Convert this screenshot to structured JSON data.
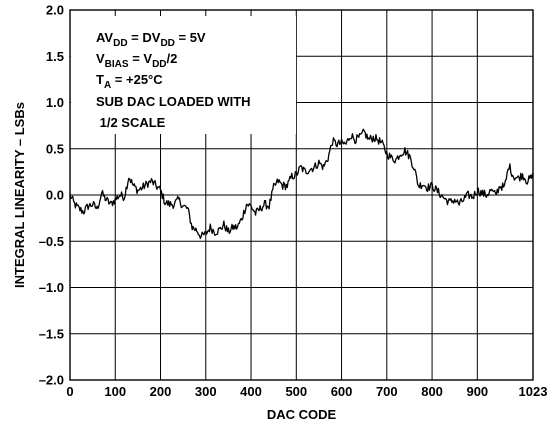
{
  "chart_data": {
    "type": "line",
    "title": "",
    "xlabel": "DAC CODE",
    "ylabel": "INTEGRAL LINEARITY – LSBs",
    "xlim": [
      0,
      1023
    ],
    "ylim": [
      -2.0,
      2.0
    ],
    "x_ticks": [
      0,
      100,
      200,
      300,
      400,
      500,
      600,
      700,
      800,
      900,
      1023
    ],
    "x_tick_labels": [
      "0",
      "100",
      "200",
      "300",
      "400",
      "500",
      "600",
      "700",
      "800",
      "900",
      "1023"
    ],
    "y_ticks": [
      2.0,
      1.5,
      1.0,
      0.5,
      0.0,
      -0.5,
      -1.0,
      -1.5,
      -2.0
    ],
    "y_tick_labels": [
      "2.0",
      "1.5",
      "1.0",
      "0.5",
      "0.0",
      "–0.5",
      "–1.0",
      "–1.5",
      "–2.0"
    ],
    "grid": true,
    "annotation": {
      "line1": {
        "a": "AV",
        "a_sub": "DD",
        "b": " = DV",
        "b_sub": "DD",
        "c": " = 5V"
      },
      "line2": {
        "a": "V",
        "a_sub": "BIAS",
        "b": " = V",
        "b_sub": "DD",
        "c": "/2"
      },
      "line3": {
        "a": "T",
        "a_sub": "A",
        "b": " = +25°C"
      },
      "line4": "SUB DAC LOADED WITH",
      "line5": " 1/2 SCALE"
    },
    "series": [
      {
        "x": [
          0,
          10,
          20,
          30,
          40,
          50,
          60,
          70,
          80,
          90,
          100,
          110,
          120,
          130,
          140,
          150,
          160,
          170,
          180,
          190,
          200,
          210,
          220,
          230,
          240,
          250,
          260,
          270,
          280,
          290,
          300,
          310,
          320,
          330,
          340,
          350,
          360,
          370,
          380,
          390,
          400,
          410,
          420,
          430,
          440,
          450,
          460,
          470,
          480,
          490,
          500,
          510,
          520,
          530,
          540,
          550,
          560,
          570,
          580,
          590,
          600,
          610,
          620,
          630,
          640,
          650,
          660,
          670,
          680,
          690,
          700,
          710,
          720,
          730,
          740,
          750,
          760,
          770,
          780,
          790,
          800,
          810,
          820,
          830,
          840,
          850,
          860,
          870,
          880,
          890,
          900,
          910,
          920,
          930,
          940,
          950,
          960,
          970,
          980,
          990,
          1000,
          1010,
          1023
        ],
        "y": [
          0.0,
          -0.1,
          -0.15,
          -0.18,
          -0.12,
          -0.1,
          -0.15,
          0.02,
          -0.05,
          -0.1,
          -0.05,
          0.0,
          -0.02,
          0.2,
          0.1,
          0.05,
          0.08,
          0.12,
          0.15,
          0.1,
          0.05,
          -0.08,
          -0.1,
          -0.1,
          -0.05,
          -0.12,
          -0.15,
          -0.35,
          -0.38,
          -0.45,
          -0.42,
          -0.35,
          -0.4,
          -0.38,
          -0.32,
          -0.4,
          -0.35,
          -0.35,
          -0.25,
          -0.1,
          -0.12,
          -0.2,
          -0.15,
          -0.1,
          -0.12,
          0.08,
          0.15,
          0.1,
          0.1,
          0.2,
          0.22,
          0.3,
          0.25,
          0.28,
          0.3,
          0.35,
          0.3,
          0.4,
          0.58,
          0.55,
          0.56,
          0.55,
          0.65,
          0.6,
          0.62,
          0.68,
          0.6,
          0.62,
          0.6,
          0.55,
          0.45,
          0.4,
          0.38,
          0.45,
          0.48,
          0.42,
          0.3,
          0.1,
          0.12,
          0.08,
          0.1,
          0.05,
          0.0,
          -0.05,
          -0.08,
          -0.05,
          -0.1,
          -0.05,
          0.0,
          -0.02,
          0.05,
          0.02,
          0.0,
          0.05,
          0.0,
          0.1,
          0.08,
          0.32,
          0.2,
          0.18,
          0.22,
          0.15,
          0.2
        ]
      }
    ]
  }
}
